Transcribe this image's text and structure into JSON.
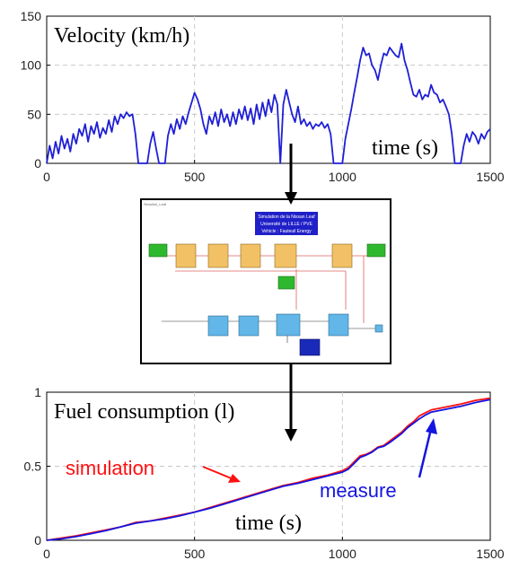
{
  "chart_data": [
    {
      "type": "line",
      "title": "",
      "annotations": [
        "Velocity (km/h)",
        "time (s)"
      ],
      "xlim": [
        0,
        1500
      ],
      "ylim": [
        0,
        150
      ],
      "x_ticks": [
        0,
        500,
        1000,
        1500
      ],
      "y_ticks": [
        0,
        50,
        100,
        150
      ],
      "grid": true,
      "series": [
        {
          "color": "#1f1fd6",
          "x": [
            0,
            10,
            20,
            30,
            40,
            50,
            60,
            70,
            80,
            90,
            100,
            110,
            120,
            130,
            140,
            150,
            160,
            170,
            180,
            190,
            200,
            210,
            220,
            230,
            240,
            250,
            260,
            270,
            280,
            290,
            300,
            310,
            320,
            330,
            340,
            350,
            360,
            370,
            380,
            390,
            400,
            410,
            420,
            430,
            440,
            450,
            460,
            470,
            480,
            490,
            500,
            510,
            520,
            530,
            540,
            550,
            560,
            570,
            580,
            590,
            600,
            610,
            620,
            630,
            640,
            650,
            660,
            670,
            680,
            690,
            700,
            710,
            720,
            730,
            740,
            750,
            760,
            770,
            780,
            790,
            800,
            810,
            820,
            830,
            840,
            850,
            860,
            870,
            880,
            890,
            900,
            910,
            920,
            930,
            940,
            950,
            960,
            970,
            980,
            990,
            1000,
            1010,
            1020,
            1030,
            1040,
            1050,
            1060,
            1070,
            1080,
            1090,
            1100,
            1110,
            1120,
            1130,
            1140,
            1150,
            1160,
            1170,
            1180,
            1190,
            1200,
            1210,
            1220,
            1230,
            1240,
            1250,
            1260,
            1270,
            1280,
            1290,
            1300,
            1310,
            1320,
            1330,
            1340,
            1350,
            1360,
            1370,
            1380,
            1390,
            1400,
            1410,
            1420,
            1430,
            1440,
            1450,
            1460,
            1470,
            1480,
            1490,
            1500
          ],
          "y": [
            0,
            18,
            5,
            22,
            10,
            28,
            15,
            25,
            12,
            30,
            20,
            35,
            28,
            40,
            22,
            38,
            30,
            42,
            26,
            36,
            30,
            44,
            32,
            48,
            40,
            50,
            46,
            52,
            48,
            50,
            30,
            0,
            0,
            0,
            0,
            20,
            32,
            15,
            0,
            0,
            0,
            28,
            40,
            30,
            45,
            35,
            48,
            40,
            52,
            62,
            72,
            65,
            55,
            40,
            30,
            48,
            40,
            52,
            38,
            55,
            42,
            50,
            38,
            52,
            40,
            55,
            45,
            58,
            44,
            56,
            40,
            60,
            45,
            62,
            48,
            65,
            52,
            70,
            60,
            0,
            60,
            75,
            62,
            50,
            42,
            58,
            40,
            45,
            38,
            42,
            35,
            40,
            38,
            42,
            36,
            40,
            30,
            0,
            0,
            0,
            0,
            25,
            40,
            55,
            72,
            88,
            105,
            118,
            110,
            112,
            100,
            95,
            85,
            100,
            112,
            110,
            118,
            114,
            110,
            108,
            122,
            105,
            95,
            82,
            70,
            68,
            75,
            65,
            70,
            68,
            80,
            72,
            70,
            62,
            65,
            58,
            50,
            30,
            0,
            0,
            0,
            18,
            30,
            22,
            32,
            28,
            20,
            30,
            25,
            32,
            35
          ]
        }
      ]
    },
    {
      "type": "line",
      "title": "",
      "annotations": [
        "Fuel consumption (l)",
        "time (s)"
      ],
      "xlim": [
        0,
        1500
      ],
      "ylim": [
        0,
        1
      ],
      "x_ticks": [
        0,
        500,
        1000,
        1500
      ],
      "y_ticks": [
        0,
        0.5,
        1
      ],
      "grid": true,
      "series": [
        {
          "name": "simulation",
          "color": "#ff1010",
          "x": [
            0,
            50,
            100,
            150,
            200,
            250,
            300,
            350,
            400,
            450,
            500,
            550,
            600,
            650,
            700,
            750,
            800,
            850,
            900,
            950,
            1000,
            1020,
            1040,
            1060,
            1080,
            1100,
            1120,
            1140,
            1160,
            1180,
            1200,
            1220,
            1240,
            1260,
            1280,
            1300,
            1350,
            1400,
            1450,
            1500
          ],
          "y": [
            0,
            0.015,
            0.03,
            0.05,
            0.07,
            0.09,
            0.12,
            0.13,
            0.15,
            0.17,
            0.19,
            0.22,
            0.25,
            0.28,
            0.31,
            0.34,
            0.37,
            0.39,
            0.42,
            0.44,
            0.47,
            0.49,
            0.53,
            0.57,
            0.58,
            0.6,
            0.63,
            0.64,
            0.67,
            0.7,
            0.73,
            0.77,
            0.8,
            0.84,
            0.86,
            0.88,
            0.9,
            0.92,
            0.945,
            0.96
          ]
        },
        {
          "name": "measure",
          "color": "#1414e0",
          "x": [
            0,
            50,
            100,
            150,
            200,
            250,
            300,
            350,
            400,
            450,
            500,
            550,
            600,
            650,
            700,
            750,
            800,
            850,
            900,
            950,
            1000,
            1020,
            1040,
            1060,
            1080,
            1100,
            1120,
            1140,
            1160,
            1180,
            1200,
            1220,
            1240,
            1260,
            1280,
            1300,
            1350,
            1400,
            1450,
            1500
          ],
          "y": [
            0,
            0.01,
            0.025,
            0.045,
            0.065,
            0.09,
            0.115,
            0.13,
            0.145,
            0.165,
            0.19,
            0.215,
            0.245,
            0.275,
            0.305,
            0.335,
            0.365,
            0.385,
            0.41,
            0.435,
            0.46,
            0.48,
            0.52,
            0.56,
            0.575,
            0.595,
            0.625,
            0.635,
            0.66,
            0.69,
            0.72,
            0.76,
            0.79,
            0.82,
            0.845,
            0.865,
            0.885,
            0.905,
            0.93,
            0.95
          ]
        }
      ]
    }
  ],
  "diagram": {
    "title_lines": [
      "Simulation de la Nissan Leaf",
      "Université de LILLE / PVE",
      "Vehicle : Fauteuil Energy"
    ],
    "window_label": "Simulink_Leaf"
  }
}
